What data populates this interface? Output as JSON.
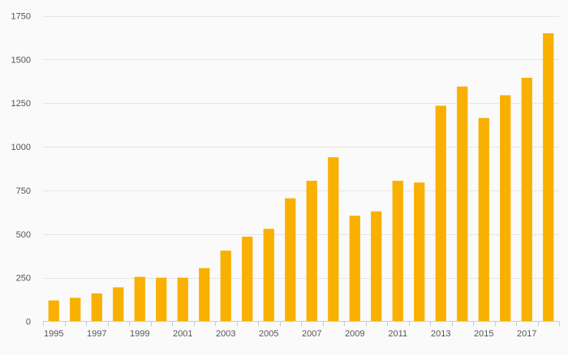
{
  "chart_data": {
    "type": "bar",
    "title": "",
    "xlabel": "",
    "ylabel": "",
    "categories": [
      "1995",
      "1996",
      "1997",
      "1998",
      "1999",
      "2000",
      "2001",
      "2002",
      "2003",
      "2004",
      "2005",
      "2006",
      "2007",
      "2008",
      "2009",
      "2010",
      "2011",
      "2012",
      "2013",
      "2014",
      "2015",
      "2016",
      "2017",
      "2018"
    ],
    "x_tick_labels": [
      "1995",
      "1997",
      "1999",
      "2001",
      "2003",
      "2005",
      "2007",
      "2009",
      "2011",
      "2013",
      "2015",
      "2017"
    ],
    "values": [
      120,
      135,
      160,
      195,
      255,
      250,
      250,
      305,
      405,
      485,
      530,
      705,
      805,
      940,
      605,
      630,
      805,
      795,
      1235,
      1345,
      1165,
      1295,
      1395,
      1650
    ],
    "ylim": [
      0,
      1750
    ],
    "y_ticks": [
      0,
      250,
      500,
      750,
      1000,
      1250,
      1500,
      1750
    ],
    "grid": true,
    "legend": "none"
  },
  "colors": {
    "bar": "#f9b000",
    "grid": "#e6e6e6",
    "axis": "#cccccc",
    "text": "#555555",
    "background": "#fafafa"
  }
}
